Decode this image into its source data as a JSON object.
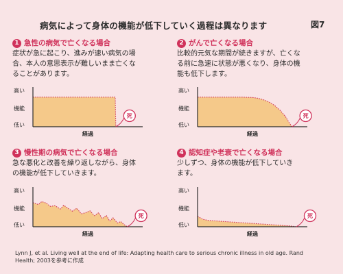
{
  "header": {
    "title": "病気によって身体の機能が低下していく過程は異なります",
    "figure_label": "図7"
  },
  "axis_labels": {
    "y_high": "高い",
    "y_mid": "機能",
    "y_low": "低い",
    "x": "経過",
    "death": "死"
  },
  "panels": [
    {
      "number": "1",
      "heading": "急性の病気で亡くなる場合",
      "lines": [
        "症状が急に起こり、進みが速い病気の場",
        "合、本人の意思表示が難しいまま亡くな",
        "ることがあります。"
      ]
    },
    {
      "number": "2",
      "heading": "がんで亡くなる場合",
      "lines": [
        "比較的元気な期間が続きますが、亡くな",
        "る前に急速に状態が悪くなり、身体の機",
        "能も低下します。"
      ]
    },
    {
      "number": "3",
      "heading": "慢性期の病気で亡くなる場合",
      "lines": [
        "急な悪化と改善を繰り返しながら、身体",
        "の機能が低下していきます。"
      ]
    },
    {
      "number": "4",
      "heading": "認知症や老衰で亡くなる場合",
      "lines": [
        "少しずつ、身体の機能が低下していき",
        "ます。"
      ]
    }
  ],
  "citation": {
    "lines": [
      "Lynn J, et al. Living well at the end of life: Adapting health care to serious chronic illness in old age. Rand",
      "Health; 2003を参考に作成"
    ]
  },
  "colors": {
    "background": "#f9e4e6",
    "accent": "#d0325b",
    "fill": "#f5c98a",
    "axis": "#2b2b2b"
  },
  "chart_data": [
    {
      "type": "area",
      "xlabel": "経過",
      "ylabel": "機能",
      "yticks": [
        "高い",
        "機能",
        "低い"
      ],
      "xlim": [
        0,
        100
      ],
      "ylim": [
        0,
        100
      ],
      "x": [
        0,
        10,
        20,
        30,
        40,
        50,
        60,
        70,
        75,
        75.5
      ],
      "values": [
        80,
        80,
        80,
        80,
        80,
        80,
        80,
        80,
        80,
        0
      ],
      "annotation": "死"
    },
    {
      "type": "area",
      "xlabel": "経過",
      "ylabel": "機能",
      "yticks": [
        "高い",
        "機能",
        "低い"
      ],
      "xlim": [
        0,
        100
      ],
      "ylim": [
        0,
        100
      ],
      "x": [
        0,
        10,
        20,
        30,
        40,
        50,
        55,
        60,
        65,
        70,
        75,
        80,
        83,
        86
      ],
      "values": [
        80,
        80,
        80,
        80,
        80,
        79,
        77,
        73,
        67,
        58,
        45,
        28,
        13,
        0
      ],
      "annotation": "死"
    },
    {
      "type": "area",
      "xlabel": "経過",
      "ylabel": "機能",
      "yticks": [
        "高い",
        "機能",
        "低い"
      ],
      "xlim": [
        0,
        100
      ],
      "ylim": [
        0,
        100
      ],
      "x": [
        0,
        5,
        8,
        12,
        16,
        20,
        25,
        28,
        32,
        36,
        40,
        44,
        48,
        52,
        56,
        60,
        63,
        67,
        70,
        73,
        77,
        80,
        83,
        86
      ],
      "values": [
        65,
        60,
        68,
        64,
        55,
        57,
        48,
        58,
        50,
        42,
        50,
        35,
        38,
        43,
        30,
        38,
        22,
        30,
        15,
        24,
        10,
        14,
        6,
        0
      ],
      "annotation": "死"
    },
    {
      "type": "area",
      "xlabel": "経過",
      "ylabel": "機能",
      "yticks": [
        "高い",
        "機能",
        "低い"
      ],
      "xlim": [
        0,
        100
      ],
      "ylim": [
        0,
        100
      ],
      "x": [
        0,
        5,
        10,
        20,
        30,
        40,
        50,
        60,
        70,
        75,
        80,
        85,
        90
      ],
      "values": [
        28,
        20,
        17,
        15,
        13,
        11,
        9,
        7,
        5,
        4,
        3,
        2,
        0
      ],
      "annotation": "死"
    }
  ]
}
